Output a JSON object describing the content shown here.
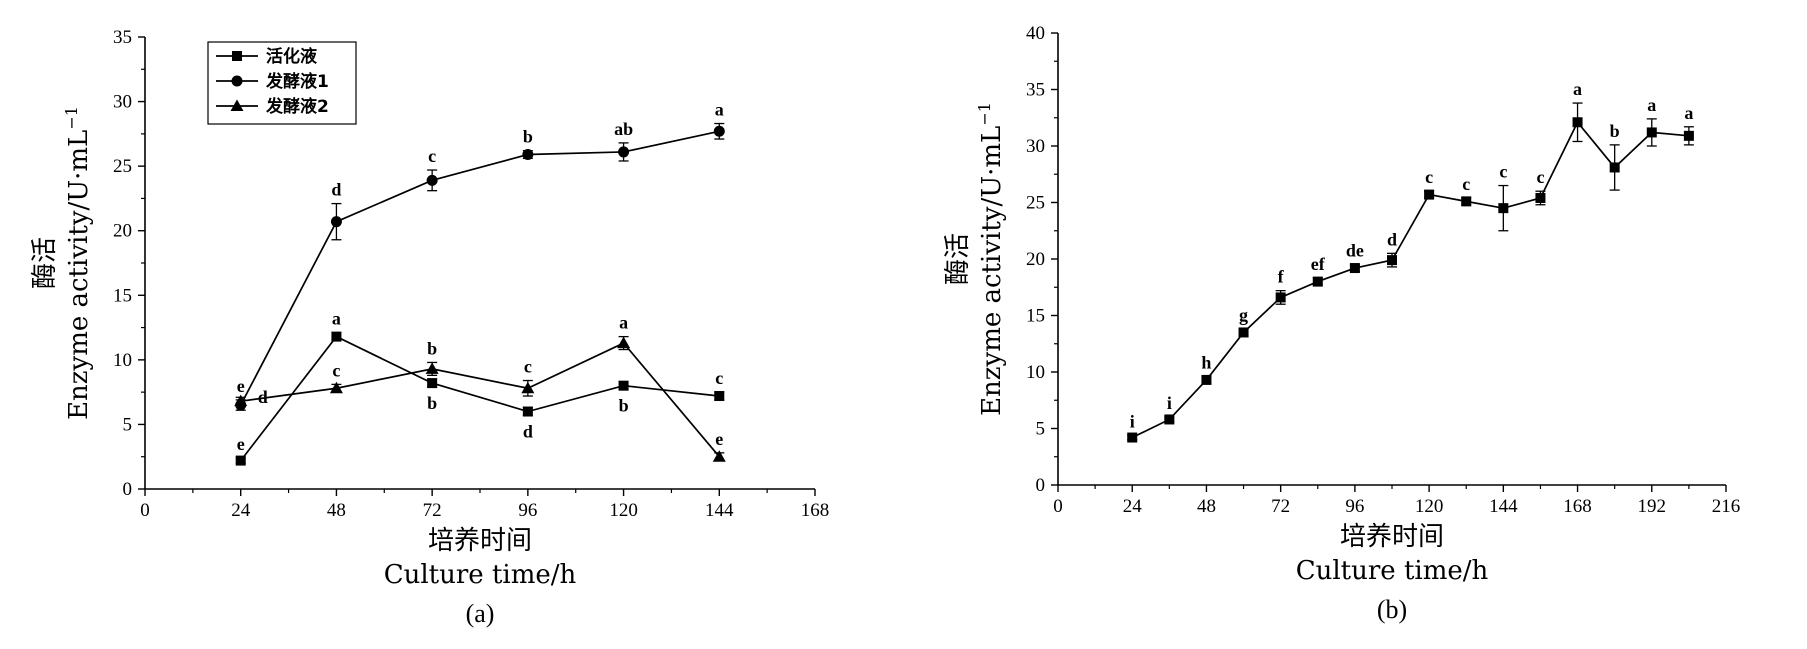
{
  "chart_data": [
    {
      "id": "a",
      "type": "line",
      "panel_label": "(a)",
      "xlabel_cn": "培养时间",
      "xlabel_en": "Culture time/h",
      "ylabel_cn": "酶活",
      "ylabel_en": "Enzyme activity/U·mL",
      "ylabel_sup": "−1",
      "xlim": [
        0,
        168
      ],
      "ylim": [
        0,
        35
      ],
      "xticks": [
        0,
        24,
        48,
        72,
        96,
        120,
        144,
        168
      ],
      "yticks": [
        0,
        5,
        10,
        15,
        20,
        25,
        30,
        35
      ],
      "grid": false,
      "legend_position": "top-left",
      "series": [
        {
          "name": "活化液",
          "marker": "square",
          "x": [
            24,
            48,
            72,
            96,
            120,
            144
          ],
          "values": [
            2.2,
            11.8,
            8.2,
            6.0,
            8.0,
            7.2
          ],
          "errors": [
            0.2,
            0.3,
            0.3,
            0.3,
            0.3,
            0.3
          ],
          "sig_labels": [
            "e",
            "a",
            "b",
            "d",
            "b",
            "c"
          ],
          "label_pos": [
            "above",
            "above",
            "below",
            "below",
            "below",
            "above"
          ]
        },
        {
          "name": "发酵液1",
          "marker": "circle",
          "x": [
            24,
            48,
            72,
            96,
            120,
            144
          ],
          "values": [
            6.5,
            20.7,
            23.9,
            25.9,
            26.1,
            27.7
          ],
          "errors": [
            0.4,
            1.4,
            0.8,
            0.3,
            0.7,
            0.6
          ],
          "sig_labels": [
            "e",
            "d",
            "c",
            "b",
            "ab",
            "a"
          ],
          "label_pos": [
            "above",
            "above",
            "above",
            "above",
            "above",
            "above"
          ]
        },
        {
          "name": "发酵液2",
          "marker": "triangle",
          "x": [
            24,
            48,
            72,
            96,
            120,
            144
          ],
          "values": [
            6.8,
            7.8,
            9.3,
            7.8,
            11.3,
            2.5
          ],
          "errors": [
            0.3,
            0.3,
            0.5,
            0.6,
            0.5,
            0.3
          ],
          "sig_labels": [
            "d",
            "c",
            "b",
            "c",
            "a",
            "e"
          ],
          "label_pos": [
            "right",
            "above",
            "above",
            "above",
            "above",
            "above"
          ]
        }
      ]
    },
    {
      "id": "b",
      "type": "line",
      "panel_label": "(b)",
      "xlabel_cn": "培养时间",
      "xlabel_en": "Culture time/h",
      "ylabel_cn": "酶活",
      "ylabel_en": "Enzyme activity/U·mL",
      "ylabel_sup": "−1",
      "xlim": [
        0,
        216
      ],
      "ylim": [
        0,
        40
      ],
      "xticks": [
        0,
        24,
        48,
        72,
        96,
        120,
        144,
        168,
        192,
        216
      ],
      "yticks": [
        0,
        5,
        10,
        15,
        20,
        25,
        30,
        35,
        40
      ],
      "grid": false,
      "series": [
        {
          "marker": "square",
          "x": [
            24,
            36,
            48,
            60,
            72,
            84,
            96,
            108,
            120,
            132,
            144,
            156,
            168,
            180,
            192,
            204
          ],
          "values": [
            4.2,
            5.8,
            9.3,
            13.5,
            16.6,
            18.0,
            19.2,
            19.9,
            25.7,
            25.1,
            24.5,
            25.4,
            32.1,
            28.1,
            31.2,
            30.9
          ],
          "errors": [
            0.2,
            0.2,
            0.3,
            0.3,
            0.6,
            0.3,
            0.3,
            0.6,
            0.3,
            0.3,
            2.0,
            0.6,
            1.7,
            2.0,
            1.2,
            0.8
          ],
          "sig_labels": [
            "i",
            "i",
            "h",
            "g",
            "f",
            "ef",
            "de",
            "d",
            "c",
            "c",
            "c",
            "c",
            "a",
            "b",
            "a",
            "a"
          ]
        }
      ]
    }
  ]
}
